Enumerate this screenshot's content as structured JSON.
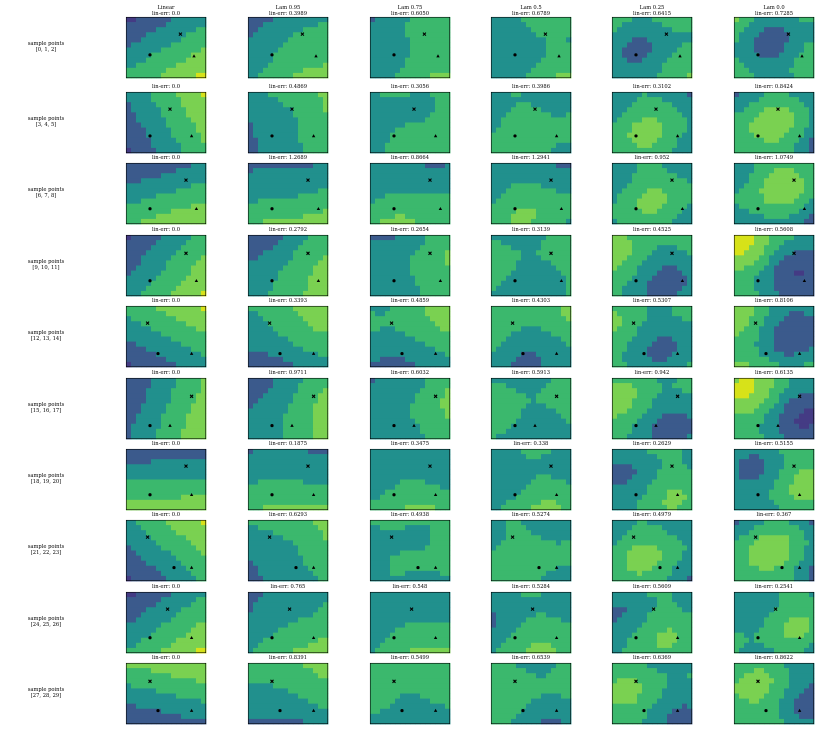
{
  "chart_data": {
    "type": "heatmap",
    "description_rows": "sample point groups",
    "columns": [
      {
        "name": "Linear",
        "first_row_err": "lin-err: 0.0"
      },
      {
        "name": "Lam 0.95",
        "first_row_err": "lin-err: 0.3989"
      },
      {
        "name": "Lam 0.75",
        "first_row_err": "lin-err: 0.6050"
      },
      {
        "name": "Lam 0.5",
        "first_row_err": "lin-err: 0.6789"
      },
      {
        "name": "Lam 0.25",
        "first_row_err": "lin-err: 0.6415"
      },
      {
        "name": "Lam 0.0",
        "first_row_err": "lin-err: 0.7285"
      }
    ],
    "rows": [
      {
        "label": "sample points",
        "points": "[0, 1, 2]"
      },
      {
        "label": "sample points",
        "points": "[3, 4, 5]"
      },
      {
        "label": "sample points",
        "points": "[6, 7, 8]"
      },
      {
        "label": "sample points",
        "points": "[9, 10, 11]"
      },
      {
        "label": "sample points",
        "points": "[12, 13, 14]"
      },
      {
        "label": "sample points",
        "points": "[15, 16, 17]"
      },
      {
        "label": "sample points",
        "points": "[18, 19, 20]"
      },
      {
        "label": "sample points",
        "points": "[21, 22, 23]"
      },
      {
        "label": "sample points",
        "points": "[24, 25, 26]"
      },
      {
        "label": "sample points",
        "points": "[27, 28, 29]"
      }
    ],
    "lin_err": [
      [
        "lin-err: 0.0",
        "lin-err: 0.3989",
        "lin-err: 0.6050",
        "lin-err: 0.6789",
        "lin-err: 0.6415",
        "lin-err: 0.7285"
      ],
      [
        "lin-err: 0.0",
        "lin-err: 0.4869",
        "lin-err: 0.3056",
        "lin-err: 0.3986",
        "lin-err: 0.3102",
        "lin-err: 0.8424"
      ],
      [
        "lin-err: 0.0",
        "lin-err: 1.2689",
        "lin-err: 0.8664",
        "lin-err: 1.2941",
        "lin-err: 0.952",
        "lin-err: 1.0749"
      ],
      [
        "lin-err: 0.0",
        "lin-err: 0.2792",
        "lin-err: 0.2654",
        "lin-err: 0.3139",
        "lin-err: 0.4525",
        "lin-err: 0.5608"
      ],
      [
        "lin-err: 0.0",
        "lin-err: 0.3393",
        "lin-err: 0.4859",
        "lin-err: 0.4303",
        "lin-err: 0.5307",
        "lin-err: 0.8106"
      ],
      [
        "lin-err: 0.0",
        "lin-err: 0.9711",
        "lin-err: 0.6032",
        "lin-err: 0.5913",
        "lin-err: 0.942",
        "lin-err: 0.6135"
      ],
      [
        "lin-err: 0.0",
        "lin-err: 0.1875",
        "lin-err: 0.3475",
        "lin-err: 0.338",
        "lin-err: 0.2629",
        "lin-err: 0.5155"
      ],
      [
        "lin-err: 0.0",
        "lin-err: 0.6293",
        "lin-err: 0.4938",
        "lin-err: 0.5274",
        "lin-err: 0.4979",
        "lin-err: 0.367"
      ],
      [
        "lin-err: 0.0",
        "lin-err: 0.765",
        "lin-err: 0.548",
        "lin-err: 0.5284",
        "lin-err: 0.5609",
        "lin-err: 0.2541"
      ],
      [
        "lin-err: 0.0",
        "lin-err: 0.8391",
        "lin-err: 0.5499",
        "lin-err: 0.6539",
        "lin-err: 0.6369",
        "lin-err: 0.8622"
      ]
    ],
    "markers": [
      "circle",
      "x",
      "triangle"
    ],
    "colormap": "viridis",
    "colors": {
      "dark": "#443b84",
      "blue": "#3b5a8c",
      "teal": "#21908d",
      "green": "#3bb86d",
      "lightgreen": "#7ad151",
      "yellow": "#d7e219",
      "marker": "#000000",
      "frame": "#000000"
    },
    "row_sample_markers": [
      [
        [
          0.3,
          0.62
        ],
        [
          0.68,
          0.28
        ],
        [
          0.85,
          0.64
        ]
      ],
      [
        [
          0.3,
          0.72
        ],
        [
          0.55,
          0.28
        ],
        [
          0.82,
          0.72
        ]
      ],
      [
        [
          0.3,
          0.75
        ],
        [
          0.75,
          0.28
        ],
        [
          0.88,
          0.75
        ]
      ],
      [
        [
          0.3,
          0.75
        ],
        [
          0.75,
          0.3
        ],
        [
          0.88,
          0.75
        ]
      ],
      [
        [
          0.4,
          0.78
        ],
        [
          0.27,
          0.28
        ],
        [
          0.82,
          0.78
        ]
      ],
      [
        [
          0.3,
          0.78
        ],
        [
          0.82,
          0.3
        ],
        [
          0.55,
          0.78
        ]
      ],
      [
        [
          0.3,
          0.75
        ],
        [
          0.75,
          0.28
        ],
        [
          0.82,
          0.75
        ]
      ],
      [
        [
          0.6,
          0.78
        ],
        [
          0.27,
          0.28
        ],
        [
          0.82,
          0.78
        ]
      ],
      [
        [
          0.3,
          0.75
        ],
        [
          0.52,
          0.28
        ],
        [
          0.82,
          0.75
        ]
      ],
      [
        [
          0.4,
          0.78
        ],
        [
          0.3,
          0.3
        ],
        [
          0.82,
          0.78
        ]
      ]
    ]
  }
}
